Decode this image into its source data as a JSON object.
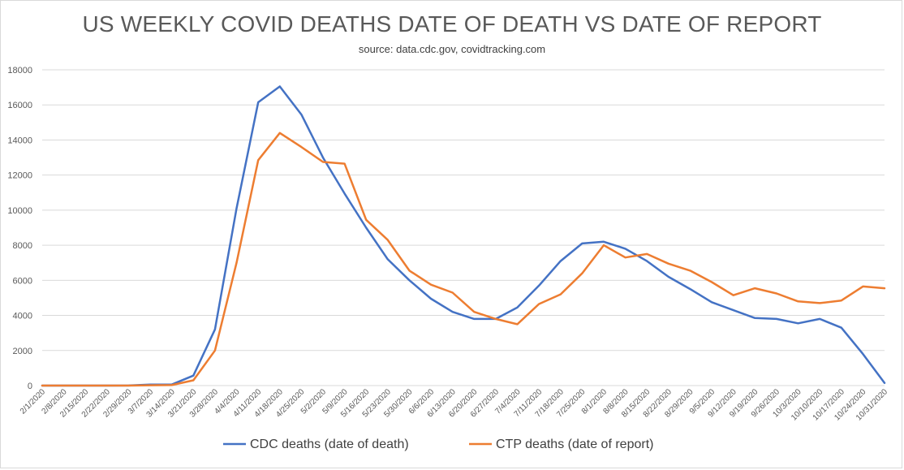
{
  "chart_data": {
    "type": "line",
    "title": "US WEEKLY COVID DEATHS DATE OF DEATH VS DATE OF REPORT",
    "subtitle": "source: data.cdc.gov, covidtracking.com",
    "xlabel": "",
    "ylabel": "",
    "ylim": [
      0,
      18000
    ],
    "yticks": [
      0,
      2000,
      4000,
      6000,
      8000,
      10000,
      12000,
      14000,
      16000,
      18000
    ],
    "grid": true,
    "legend_position": "bottom",
    "categories": [
      "2/1/2020",
      "2/8/2020",
      "2/15/2020",
      "2/22/2020",
      "2/29/2020",
      "3/7/2020",
      "3/14/2020",
      "3/21/2020",
      "3/28/2020",
      "4/4/2020",
      "4/11/2020",
      "4/18/2020",
      "4/25/2020",
      "5/2/2020",
      "5/9/2020",
      "5/16/2020",
      "5/23/2020",
      "5/30/2020",
      "6/6/2020",
      "6/13/2020",
      "6/20/2020",
      "6/27/2020",
      "7/4/2020",
      "7/11/2020",
      "7/18/2020",
      "7/25/2020",
      "8/1/2020",
      "8/8/2020",
      "8/15/2020",
      "8/22/2020",
      "8/29/2020",
      "9/5/2020",
      "9/12/2020",
      "9/19/2020",
      "9/26/2020",
      "10/3/2020",
      "10/10/2020",
      "10/17/2020",
      "10/24/2020",
      "10/31/2020"
    ],
    "series": [
      {
        "name": "CDC deaths (date of death)",
        "color": "#4472C4",
        "values": [
          0,
          0,
          0,
          0,
          5,
          60,
          60,
          570,
          3200,
          10100,
          16150,
          17050,
          15450,
          13000,
          10950,
          9000,
          7200,
          6000,
          4950,
          4200,
          3800,
          3800,
          4450,
          5700,
          7100,
          8100,
          8200,
          7800,
          7100,
          6200,
          5500,
          4750,
          4300,
          3850,
          3800,
          3550,
          3800,
          3300,
          1800,
          150
        ]
      },
      {
        "name": "CTP deaths (date of report)",
        "color": "#ED7D31",
        "values": [
          0,
          0,
          0,
          0,
          0,
          20,
          30,
          300,
          2000,
          7000,
          12850,
          14400,
          13600,
          12750,
          12650,
          9450,
          8300,
          6550,
          5750,
          5300,
          4200,
          3800,
          3500,
          4650,
          5200,
          6400,
          8000,
          7300,
          7500,
          6950,
          6550,
          5900,
          5150,
          5550,
          5250,
          4800,
          4700,
          4850,
          5650,
          5550
        ]
      }
    ]
  }
}
